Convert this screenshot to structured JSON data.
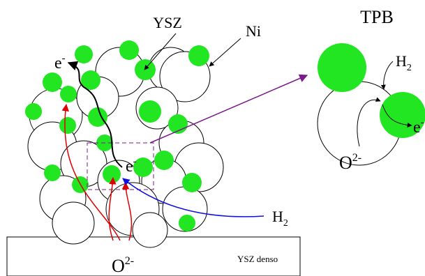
{
  "labels": {
    "ysz": "YSZ",
    "ni": "Ni",
    "tpb": "TPB",
    "ysz_dense": "YSZ denso",
    "electron_top": {
      "base": "e",
      "sup": "-"
    },
    "electron_mid": {
      "base": "e",
      "sup": "-"
    },
    "electron_tpb": {
      "base": "e",
      "sup": "-"
    },
    "hydrogen_tpb": {
      "base": "H",
      "sub": "2"
    },
    "hydrogen_bottom": {
      "base": "H",
      "sub": "2"
    },
    "oxide_tpb": {
      "base": "O",
      "sup": "2-"
    },
    "oxide_bottom": {
      "base": "O",
      "sup": "2-"
    }
  }
}
